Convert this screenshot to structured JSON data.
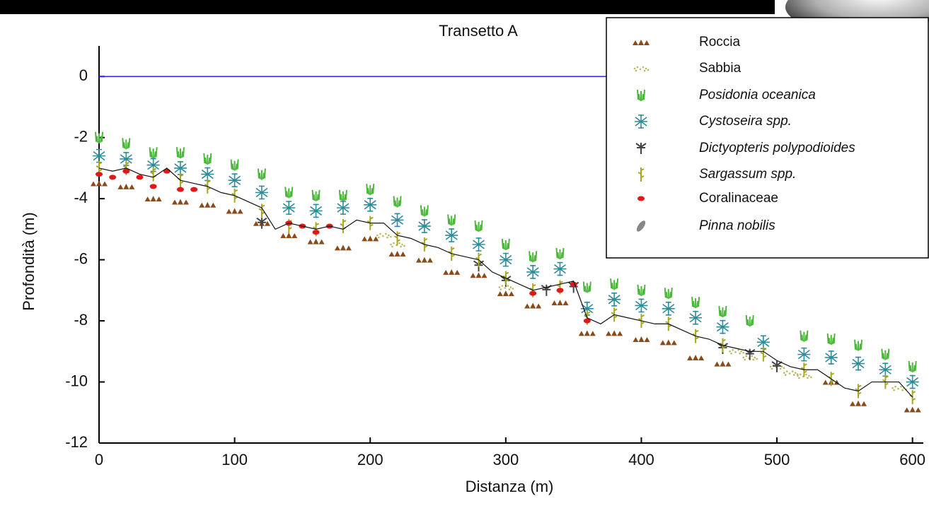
{
  "chart_data": {
    "type": "scatter",
    "title": "Transetto A",
    "x_label": "Distanza (m)",
    "y_label": "Profondità (m)",
    "xlim": [
      0,
      608
    ],
    "ylim": [
      -12,
      1
    ],
    "xticks": [
      0,
      100,
      200,
      300,
      400,
      500,
      600
    ],
    "yticks": [
      -12,
      -10,
      -8,
      -6,
      -4,
      -2,
      0
    ],
    "reference_line": {
      "y": 0,
      "color": "#2a2aff"
    },
    "profile": {
      "color": "#111111",
      "x": [
        0,
        10,
        20,
        30,
        40,
        50,
        60,
        70,
        80,
        90,
        100,
        110,
        120,
        130,
        140,
        150,
        160,
        170,
        180,
        190,
        200,
        210,
        220,
        230,
        240,
        250,
        260,
        270,
        280,
        290,
        300,
        310,
        320,
        330,
        340,
        350,
        360,
        370,
        380,
        390,
        400,
        410,
        420,
        430,
        440,
        450,
        460,
        470,
        480,
        490,
        500,
        510,
        520,
        530,
        540,
        550,
        560,
        570,
        580,
        590,
        600
      ],
      "values": [
        -3.0,
        -3.1,
        -3.0,
        -3.2,
        -3.3,
        -3.0,
        -3.4,
        -3.5,
        -3.6,
        -3.8,
        -3.9,
        -4.1,
        -4.3,
        -5.0,
        -4.8,
        -4.9,
        -5.0,
        -4.9,
        -5.0,
        -4.7,
        -4.8,
        -4.8,
        -5.2,
        -5.3,
        -5.5,
        -5.6,
        -5.8,
        -5.9,
        -6.0,
        -6.4,
        -6.6,
        -6.8,
        -7.0,
        -6.9,
        -6.8,
        -6.7,
        -7.9,
        -8.1,
        -7.8,
        -7.9,
        -8.0,
        -8.1,
        -8.1,
        -8.3,
        -8.5,
        -8.6,
        -8.8,
        -8.9,
        -9.0,
        -9.0,
        -9.3,
        -9.5,
        -9.6,
        -9.6,
        -9.9,
        -10.2,
        -10.3,
        -10.0,
        -10.0,
        -10.0,
        -10.5
      ]
    },
    "legend": "upper right",
    "series": [
      {
        "name": "Roccia",
        "color": "#8b4a1a",
        "marker": "rock",
        "italic": false,
        "x": [
          0,
          20,
          40,
          60,
          80,
          100,
          120,
          140,
          160,
          180,
          200,
          220,
          240,
          260,
          280,
          300,
          320,
          340,
          360,
          380,
          400,
          420,
          440,
          460,
          540,
          560,
          600
        ],
        "values": [
          -3.5,
          -3.6,
          -4.0,
          -4.1,
          -4.2,
          -4.4,
          -4.8,
          -5.2,
          -5.4,
          -5.6,
          -5.3,
          -5.8,
          -6.0,
          -6.4,
          -6.5,
          -7.1,
          -7.5,
          -7.4,
          -8.4,
          -8.4,
          -8.6,
          -8.7,
          -9.2,
          -9.4,
          -10.0,
          -10.7,
          -10.9
        ]
      },
      {
        "name": "Sabbia",
        "color": "#b8b860",
        "marker": "sand",
        "italic": false,
        "x": [
          210,
          220,
          300,
          470,
          480,
          500,
          510,
          520,
          590
        ],
        "values": [
          -5.2,
          -5.5,
          -6.9,
          -9.0,
          -9.2,
          -9.5,
          -9.7,
          -9.8,
          -10.2
        ]
      },
      {
        "name": "Posidonia oceanica",
        "color": "#4cb83a",
        "marker": "seagrass",
        "italic": true,
        "x": [
          0,
          20,
          40,
          60,
          80,
          100,
          120,
          140,
          160,
          180,
          200,
          220,
          240,
          260,
          280,
          300,
          320,
          340,
          360,
          380,
          400,
          420,
          440,
          460,
          480,
          520,
          540,
          560,
          580,
          600
        ],
        "values": [
          -2.0,
          -2.2,
          -2.5,
          -2.5,
          -2.7,
          -2.9,
          -3.2,
          -3.8,
          -3.9,
          -3.9,
          -3.7,
          -4.1,
          -4.4,
          -4.7,
          -4.9,
          -5.5,
          -5.9,
          -5.8,
          -6.9,
          -6.8,
          -7.0,
          -7.1,
          -7.4,
          -7.7,
          -8.0,
          -8.5,
          -8.6,
          -8.8,
          -9.1,
          -9.5
        ]
      },
      {
        "name": "Cystoseira spp.",
        "color": "#2e8c9a",
        "marker": "tree",
        "italic": true,
        "x": [
          0,
          20,
          40,
          60,
          80,
          100,
          120,
          140,
          160,
          180,
          200,
          220,
          240,
          260,
          280,
          300,
          320,
          340,
          360,
          380,
          400,
          420,
          440,
          460,
          490,
          520,
          540,
          560,
          580,
          600
        ],
        "values": [
          -2.6,
          -2.7,
          -2.9,
          -3.0,
          -3.2,
          -3.4,
          -3.8,
          -4.3,
          -4.4,
          -4.3,
          -4.2,
          -4.7,
          -4.9,
          -5.2,
          -5.5,
          -6.0,
          -6.4,
          -6.3,
          -7.6,
          -7.3,
          -7.5,
          -7.6,
          -7.9,
          -8.2,
          -8.7,
          -9.1,
          -9.2,
          -9.4,
          -9.6,
          -10.0
        ]
      },
      {
        "name": "Dictyopteris polypodioides",
        "color": "#444444",
        "marker": "fork",
        "italic": true,
        "x": [
          120,
          280,
          300,
          330,
          350,
          460,
          480,
          500
        ],
        "values": [
          -4.8,
          -6.2,
          -6.7,
          -7.0,
          -6.9,
          -8.9,
          -9.1,
          -9.5
        ]
      },
      {
        "name": "Sargassum spp.",
        "color": "#a8a820",
        "marker": "stalk",
        "italic": true,
        "x": [
          0,
          20,
          40,
          60,
          80,
          100,
          120,
          140,
          160,
          180,
          200,
          220,
          240,
          260,
          280,
          300,
          320,
          340,
          360,
          380,
          400,
          420,
          440,
          460,
          490,
          520,
          540,
          560,
          580,
          600
        ],
        "values": [
          -3.0,
          -3.0,
          -3.2,
          -3.4,
          -3.6,
          -3.9,
          -4.4,
          -4.9,
          -5.0,
          -4.9,
          -4.8,
          -5.3,
          -5.5,
          -5.8,
          -6.0,
          -6.6,
          -7.0,
          -6.9,
          -7.9,
          -7.8,
          -8.0,
          -8.1,
          -8.5,
          -8.8,
          -9.1,
          -9.6,
          -9.9,
          -10.3,
          -10.0,
          -10.5
        ]
      },
      {
        "name": "Coralinaceae",
        "color": "#e01818",
        "marker": "dot",
        "italic": false,
        "x": [
          0,
          10,
          20,
          30,
          40,
          50,
          60,
          70,
          140,
          150,
          160,
          170,
          320,
          340,
          350,
          360
        ],
        "values": [
          -3.2,
          -3.3,
          -3.1,
          -3.3,
          -3.6,
          -3.1,
          -3.7,
          -3.7,
          -4.8,
          -4.9,
          -5.1,
          -4.9,
          -7.1,
          -7.0,
          -6.8,
          -8.0
        ]
      },
      {
        "name": "Pinna nobilis",
        "color": "#888888",
        "marker": "shell",
        "italic": true,
        "x": [],
        "values": []
      }
    ]
  }
}
